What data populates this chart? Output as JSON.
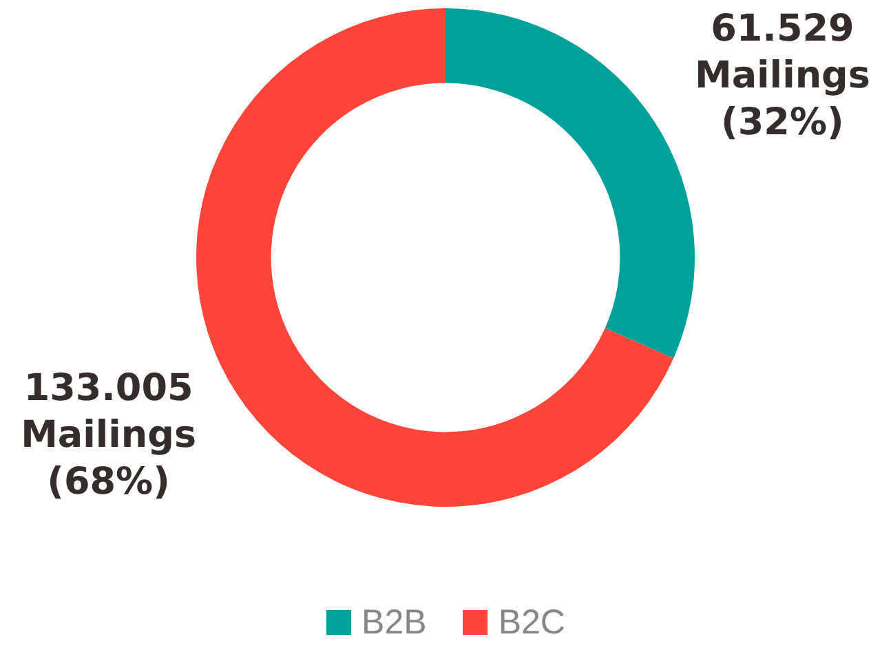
{
  "chart_data": {
    "type": "donut",
    "categories": [
      "B2B",
      "B2C"
    ],
    "values": [
      61529,
      133005
    ],
    "colors": [
      "#00a19a",
      "#ff453a"
    ],
    "value_labels": [
      "61.529\nMailings\n(32%)",
      "133.005\nMailings\n(68%)"
    ],
    "legend": "bottom"
  }
}
